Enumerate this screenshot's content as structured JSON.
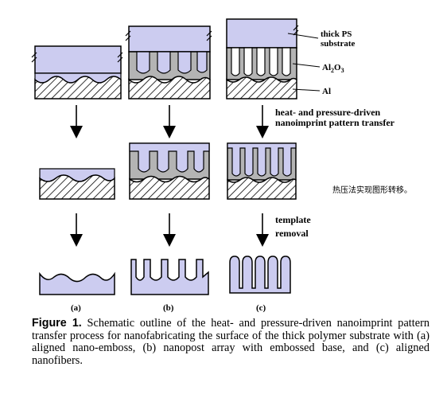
{
  "labels": {
    "thick_ps_line1": "thick PS",
    "thick_ps_line2": "substrate",
    "al2o3_main": "Al",
    "al2o3_sub1": "2",
    "al2o3_mid": "O",
    "al2o3_sub2": "3",
    "al": "Al",
    "step1_line1": "heat- and pressure-driven",
    "step1_line2": "nanoimprint pattern transfer",
    "step2_line1": "template",
    "step2_line2": "removal",
    "col_a": "(a)",
    "col_b": "(b)",
    "col_c": "(c)"
  },
  "side_note": "热压法实现图形转移。",
  "caption": {
    "figure_label": "Figure 1.",
    "text": "Schematic outline of the heat- and pressure-driven nanoimprint pattern transfer process for nanofabricating the surface of the thick polymer substrate with (a) aligned nano-emboss, (b) nanopost array with embossed base, and (c) aligned nanofibers."
  },
  "colors": {
    "polymer_fill": "#ccccf0",
    "alumina_fill": "#b4b4b4",
    "outline": "#000000"
  }
}
